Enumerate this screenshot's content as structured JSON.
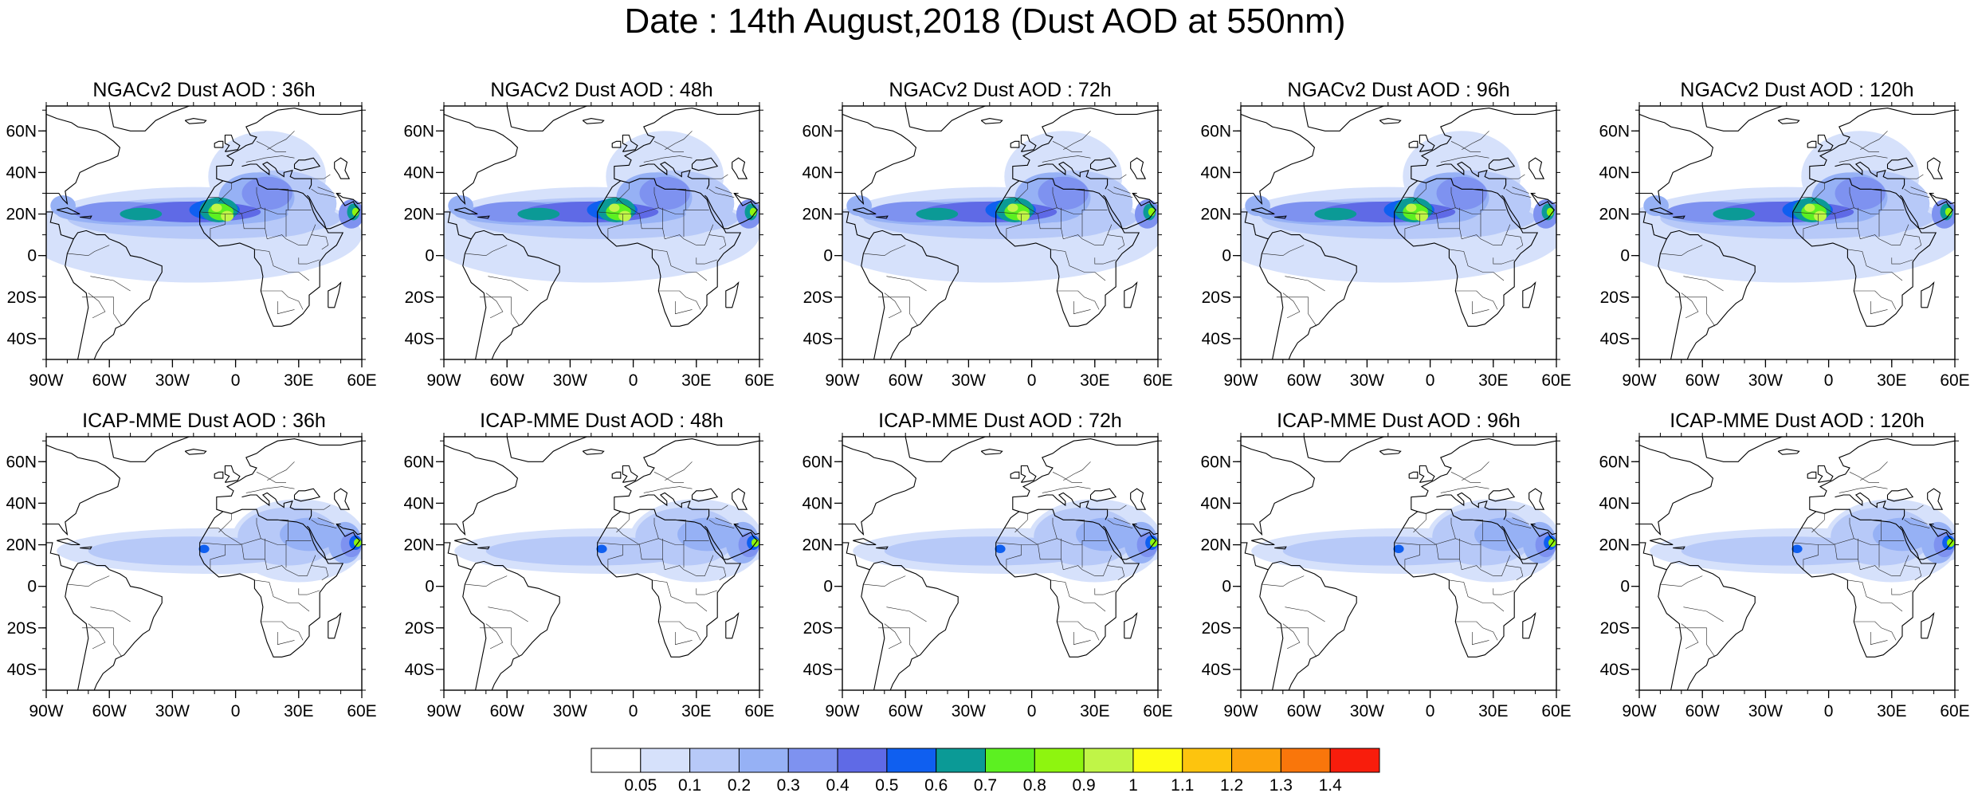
{
  "figure": {
    "title": "Date : 14th August,2018 (Dust AOD at 550nm)"
  },
  "panels": [
    {
      "row": 0,
      "col": 0,
      "model": "NGACv2",
      "title": "NGACv2 Dust AOD : 36h"
    },
    {
      "row": 0,
      "col": 1,
      "model": "NGACv2",
      "title": "NGACv2 Dust AOD : 48h"
    },
    {
      "row": 0,
      "col": 2,
      "model": "NGACv2",
      "title": "NGACv2 Dust AOD : 72h"
    },
    {
      "row": 0,
      "col": 3,
      "model": "NGACv2",
      "title": "NGACv2 Dust AOD : 96h"
    },
    {
      "row": 0,
      "col": 4,
      "model": "NGACv2",
      "title": "NGACv2 Dust AOD : 120h"
    },
    {
      "row": 1,
      "col": 0,
      "model": "ICAP",
      "title": "ICAP-MME Dust AOD : 36h"
    },
    {
      "row": 1,
      "col": 1,
      "model": "ICAP",
      "title": "ICAP-MME Dust AOD : 48h"
    },
    {
      "row": 1,
      "col": 2,
      "model": "ICAP",
      "title": "ICAP-MME Dust AOD : 72h"
    },
    {
      "row": 1,
      "col": 3,
      "model": "ICAP",
      "title": "ICAP-MME Dust AOD : 96h"
    },
    {
      "row": 1,
      "col": 4,
      "model": "ICAP",
      "title": "ICAP-MME Dust AOD : 120h"
    }
  ],
  "axes": {
    "lon_range": [
      -90,
      60
    ],
    "lat_range": [
      -50,
      72
    ],
    "lon_ticks": [
      {
        "value": -90,
        "label": "90W"
      },
      {
        "value": -60,
        "label": "60W"
      },
      {
        "value": -30,
        "label": "30W"
      },
      {
        "value": 0,
        "label": "0"
      },
      {
        "value": 30,
        "label": "30E"
      },
      {
        "value": 60,
        "label": "60E"
      }
    ],
    "lat_ticks": [
      {
        "value": 60,
        "label": "60N"
      },
      {
        "value": 40,
        "label": "40N"
      },
      {
        "value": 20,
        "label": "20N"
      },
      {
        "value": 0,
        "label": "0"
      },
      {
        "value": -20,
        "label": "20S"
      },
      {
        "value": -40,
        "label": "40S"
      }
    ]
  },
  "colorbar": {
    "colors": [
      "#ffffff",
      "#d6e1fb",
      "#b7c9f8",
      "#96b1f5",
      "#7e92f0",
      "#5f6ae6",
      "#0f5ff0",
      "#0b9a96",
      "#5cf021",
      "#8ef50f",
      "#c0f547",
      "#fdfd14",
      "#fdc40e",
      "#fca20c",
      "#f9760b",
      "#f81d0c"
    ],
    "labels": [
      "0.05",
      "0.1",
      "0.2",
      "0.3",
      "0.4",
      "0.5",
      "0.6",
      "0.7",
      "0.8",
      "0.9",
      "1",
      "1.1",
      "1.2",
      "1.3",
      "1.4"
    ]
  }
}
